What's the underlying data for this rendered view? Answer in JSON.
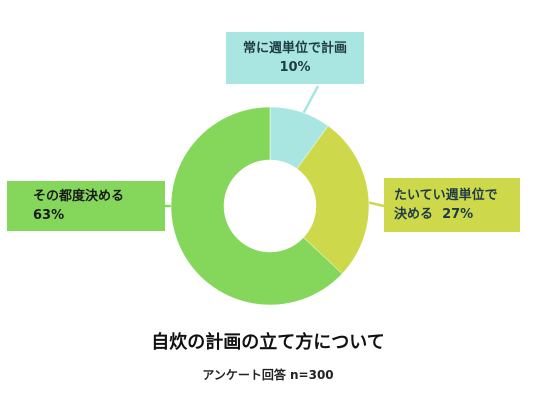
{
  "chart_data": {
    "type": "pie",
    "variant": "donut",
    "title": "自炊の計画の立て方について",
    "subtitle": "アンケート回答 n=300",
    "slices": [
      {
        "label": "常に週単位で計画",
        "value": 10,
        "value_label": "10%",
        "color": "#a9e6e1"
      },
      {
        "label": "たいてい週単位で",
        "label_line2": "決める",
        "value": 27,
        "value_label": "27%",
        "color": "#cdd84a"
      },
      {
        "label": "その都度決める",
        "value": 63,
        "value_label": "63%",
        "color": "#85d75c"
      }
    ],
    "legend": "callouts"
  }
}
